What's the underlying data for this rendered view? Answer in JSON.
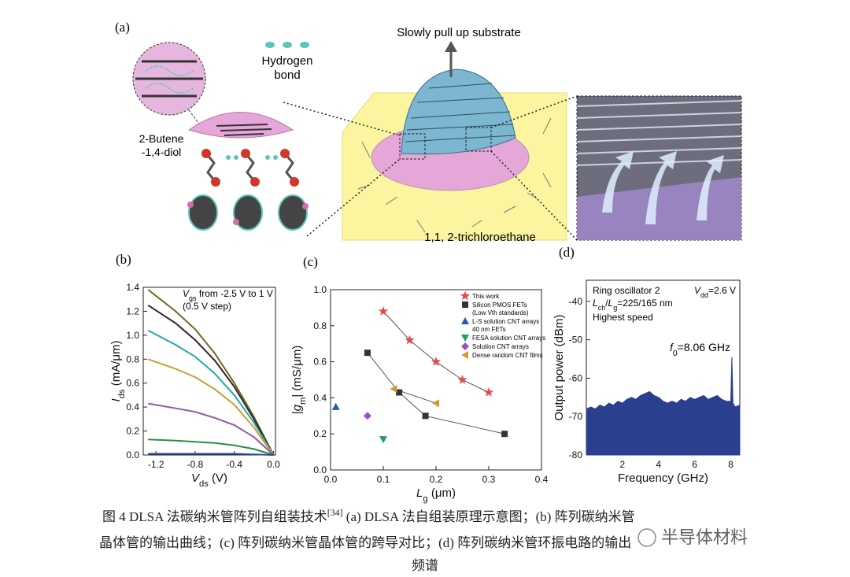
{
  "figure_a": {
    "label": "(a)",
    "hydrogen_bond": [
      "Hydrogen",
      "bond"
    ],
    "pull": "Slowly pull up substrate",
    "diol": [
      "2-Butene",
      "-1,4-diol"
    ],
    "solvent": "1,1, 2-trichloroethane"
  },
  "chart_data": [
    {
      "type": "line",
      "panel_label": "(b)",
      "annotation": [
        [
          {
            "t": "V",
            "italic": true
          },
          {
            "t": "gs",
            "sub": true
          },
          {
            "t": " from -2.5 V to 1 V"
          }
        ],
        [
          {
            "t": "(0.5 V step)"
          }
        ]
      ],
      "xlabel": [
        {
          "t": "V",
          "italic": true
        },
        {
          "t": "ds",
          "sub": true
        },
        {
          "t": " (V)"
        }
      ],
      "ylabel": [
        {
          "t": "I",
          "italic": true
        },
        {
          "t": "ds",
          "sub": true
        },
        {
          "t": " (mA/μm)"
        }
      ],
      "x": [
        -1.28,
        -1.0,
        -0.8,
        -0.6,
        -0.4,
        -0.2,
        0
      ],
      "series": [
        {
          "color": "#6b6b1e",
          "values": [
            1.38,
            1.2,
            1.05,
            0.85,
            0.6,
            0.32,
            0
          ]
        },
        {
          "color": "#3a1f2e",
          "values": [
            1.25,
            1.1,
            0.96,
            0.79,
            0.57,
            0.3,
            0
          ]
        },
        {
          "color": "#1fa9a8",
          "values": [
            1.04,
            0.92,
            0.82,
            0.68,
            0.5,
            0.27,
            0
          ]
        },
        {
          "color": "#c8a030",
          "values": [
            0.8,
            0.72,
            0.65,
            0.55,
            0.42,
            0.23,
            0
          ]
        },
        {
          "color": "#8a5aa8",
          "values": [
            0.43,
            0.39,
            0.36,
            0.31,
            0.25,
            0.15,
            0
          ]
        },
        {
          "color": "#2e8b4a",
          "values": [
            0.13,
            0.12,
            0.11,
            0.1,
            0.08,
            0.05,
            0
          ]
        },
        {
          "color": "#2a4a9a",
          "values": [
            0.01,
            0.01,
            0.01,
            0.01,
            0.01,
            0.005,
            0
          ]
        }
      ],
      "xlim": [
        -1.33,
        0.02
      ],
      "xticks": [
        -1.2,
        -0.8,
        -0.4,
        {
          "value": 0,
          "label": "0.0"
        }
      ],
      "ylim": [
        0,
        1.4
      ],
      "yticks": [
        {
          "value": 0,
          "label": "0.0"
        },
        0.2,
        0.4,
        0.6,
        0.8,
        {
          "value": 1,
          "label": "1.0"
        },
        1.2,
        1.4
      ]
    },
    {
      "type": "scatter",
      "panel_label": "(c)",
      "xlabel": [
        {
          "t": "L",
          "italic": true
        },
        {
          "t": "g",
          "sub": true
        },
        {
          "t": " (μm)"
        }
      ],
      "ylabel": [
        {
          "t": "|"
        },
        {
          "t": "g",
          "italic": true
        },
        {
          "t": "m",
          "sub": true
        },
        {
          "t": "| (mS/μm)"
        }
      ],
      "legend": "upper right",
      "series": [
        {
          "name": "This work",
          "color": "#e05050",
          "marker": "star",
          "line": true,
          "x": [
            0.1,
            0.15,
            0.2,
            0.25,
            0.3
          ],
          "values": [
            0.88,
            0.72,
            0.6,
            0.5,
            0.43
          ]
        },
        {
          "name": "Silicon PMOS FETs",
          "note": "(Low Vth standards)",
          "color": "#333333",
          "marker": "square",
          "line": true,
          "x": [
            0.07,
            0.13,
            0.18,
            0.33
          ],
          "values": [
            0.65,
            0.43,
            0.3,
            0.2
          ]
        },
        {
          "name": "L-S solution CNT arrays",
          "note": "40 nm FETs",
          "color": "#2a5aa8",
          "marker": "triangle-up",
          "x": [
            0.01
          ],
          "values": [
            0.35
          ]
        },
        {
          "name": "FESA solution CNT arrays",
          "color": "#20a060",
          "marker": "triangle-down",
          "x": [
            0.1
          ],
          "values": [
            0.17
          ]
        },
        {
          "name": "Solution CNT arrays",
          "color": "#a050c0",
          "marker": "diamond",
          "x": [
            0.07
          ],
          "values": [
            0.3
          ]
        },
        {
          "name": "Dense random CNT films",
          "color": "#d09a30",
          "marker": "triangle-left",
          "line": true,
          "x": [
            0.12,
            0.2
          ],
          "values": [
            0.45,
            0.37
          ]
        }
      ],
      "xlim": [
        0,
        0.4
      ],
      "xticks": [
        {
          "value": 0,
          "label": "0.0"
        },
        0.1,
        0.2,
        0.3,
        0.4
      ],
      "ylim": [
        0,
        1
      ],
      "yticks": [
        {
          "value": 0,
          "label": "0.0"
        },
        0.2,
        0.4,
        0.6,
        0.8,
        {
          "value": 1,
          "label": "1.0"
        }
      ]
    },
    {
      "type": "area",
      "panel_label": "(d)",
      "color": "#2b3f8f",
      "xlabel": [
        {
          "t": "Frequency (GHz)"
        }
      ],
      "ylabel": [
        {
          "t": "Output power (dBm)"
        }
      ],
      "annotations": [
        [
          {
            "t": "Ring oscillator 2"
          }
        ],
        [
          {
            "t": "L",
            "italic": true
          },
          {
            "t": "ch",
            "sub": true
          },
          {
            "t": "/"
          },
          {
            "t": "L",
            "italic": true
          },
          {
            "t": "g",
            "sub": true
          },
          {
            "t": "=225/165 nm"
          }
        ],
        [
          {
            "t": "Highest speed"
          }
        ],
        [
          {
            "t": "V",
            "italic": true
          },
          {
            "t": "dd",
            "sub": true
          },
          {
            "t": "=2.6 V"
          }
        ],
        [
          {
            "t": "f",
            "italic": true
          },
          {
            "t": "0",
            "sub": true
          },
          {
            "t": "=8.06 GHz"
          }
        ]
      ],
      "x": [
        0,
        0.25,
        0.5,
        0.75,
        1,
        1.25,
        1.5,
        1.75,
        2,
        2.25,
        2.5,
        2.75,
        3,
        3.25,
        3.5,
        3.75,
        4,
        4.25,
        4.5,
        4.75,
        5,
        5.25,
        5.5,
        5.75,
        6,
        6.25,
        6.5,
        6.75,
        7,
        7.25,
        7.5,
        7.75,
        8,
        8.06,
        8.12,
        8.25,
        8.5
      ],
      "values": [
        -68,
        -67.5,
        -68,
        -67,
        -67.5,
        -66.5,
        -67,
        -66,
        -66.5,
        -65.5,
        -65,
        -65.5,
        -64.5,
        -64,
        -63.5,
        -64.5,
        -65,
        -66,
        -66.5,
        -66,
        -66.5,
        -65.5,
        -66,
        -65,
        -65.5,
        -65,
        -64.5,
        -65.5,
        -65,
        -64.5,
        -65.5,
        -66,
        -66,
        -54.5,
        -66.5,
        -67.5,
        -67
      ],
      "xlim": [
        0,
        8.5
      ],
      "xticks": [
        2,
        4,
        6,
        8
      ],
      "ylim": [
        -80,
        -34.5
      ],
      "yticks": [
        -80,
        -70,
        -60,
        -50,
        -40
      ]
    }
  ],
  "caption": [
    [
      {
        "t": "图 4 DLSA 法碳纳米管阵列自组装技术"
      },
      {
        "t": "[34]",
        "sup": true
      },
      {
        "t": " (a) DLSA 法自组装原理示意图；(b)  阵列碳纳米管"
      }
    ],
    [
      {
        "t": "晶体管的输出曲线；(c)  阵列碳纳米管晶体管的跨导对比；(d)  阵列碳纳米管环振电路的输出"
      }
    ],
    [
      {
        "t": "频谱"
      }
    ]
  ],
  "watermark": "半导体材料"
}
